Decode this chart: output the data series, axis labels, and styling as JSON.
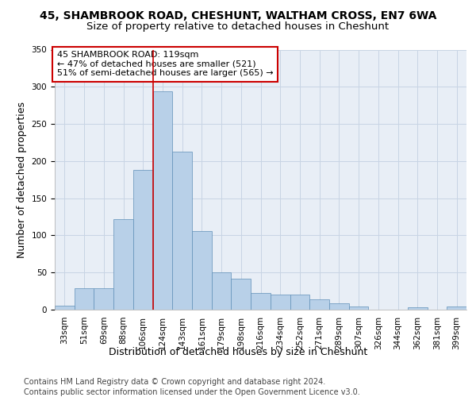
{
  "title_line1": "45, SHAMBROOK ROAD, CHESHUNT, WALTHAM CROSS, EN7 6WA",
  "title_line2": "Size of property relative to detached houses in Cheshunt",
  "xlabel": "Distribution of detached houses by size in Cheshunt",
  "ylabel": "Number of detached properties",
  "categories": [
    "33sqm",
    "51sqm",
    "69sqm",
    "88sqm",
    "106sqm",
    "124sqm",
    "143sqm",
    "161sqm",
    "179sqm",
    "198sqm",
    "216sqm",
    "234sqm",
    "252sqm",
    "271sqm",
    "289sqm",
    "307sqm",
    "326sqm",
    "344sqm",
    "362sqm",
    "381sqm",
    "399sqm"
  ],
  "values": [
    5,
    29,
    29,
    122,
    188,
    294,
    213,
    106,
    50,
    42,
    22,
    20,
    20,
    14,
    9,
    4,
    0,
    0,
    3,
    0,
    4
  ],
  "bar_color": "#b8d0e8",
  "bar_edge_color": "#6090b8",
  "grid_color": "#c8d4e4",
  "background_color": "#e8eef6",
  "annotation_text": "45 SHAMBROOK ROAD: 119sqm\n← 47% of detached houses are smaller (521)\n51% of semi-detached houses are larger (565) →",
  "annotation_box_color": "#ffffff",
  "annotation_box_edge_color": "#cc0000",
  "vline_color": "#cc0000",
  "ylim": [
    0,
    350
  ],
  "yticks": [
    0,
    50,
    100,
    150,
    200,
    250,
    300,
    350
  ],
  "footer_line1": "Contains HM Land Registry data © Crown copyright and database right 2024.",
  "footer_line2": "Contains public sector information licensed under the Open Government Licence v3.0.",
  "title_fontsize": 10,
  "subtitle_fontsize": 9.5,
  "axis_label_fontsize": 9,
  "tick_fontsize": 7.5,
  "annotation_fontsize": 8,
  "footer_fontsize": 7
}
